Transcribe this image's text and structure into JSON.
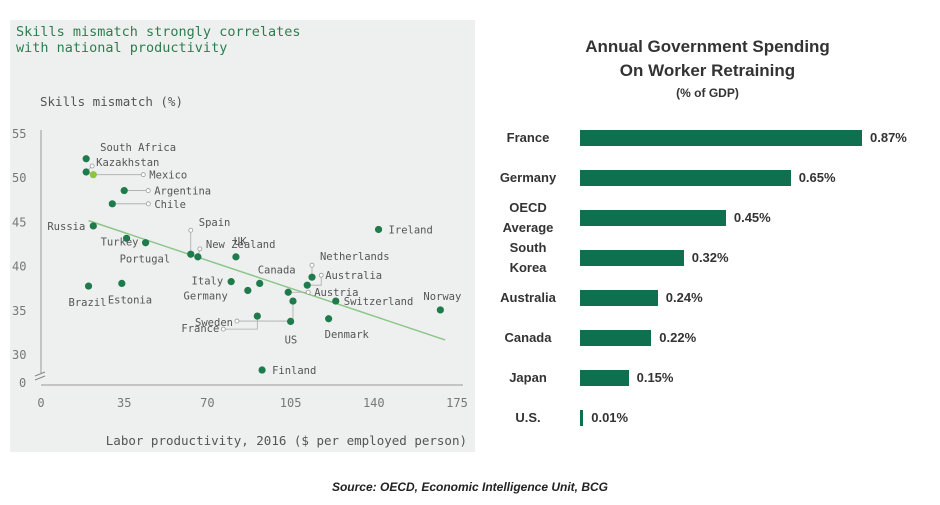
{
  "left_chart_data": {
    "type": "scatter",
    "title": "Skills mismatch strongly correlates\nwith national productivity",
    "ylabel": "Skills mismatch (%)",
    "xlabel": "Labor productivity, 2016 ($ per employed person)",
    "xlim": [
      0,
      175
    ],
    "ylim": [
      30,
      55
    ],
    "x_ticks": [
      "0",
      "35",
      "70",
      "105",
      "140",
      "175"
    ],
    "y_ticks": [
      "55",
      "50",
      "45",
      "40",
      "35",
      "30"
    ],
    "y_break_label": "0",
    "trend_line": {
      "x": [
        20,
        170
      ],
      "y": [
        45.2,
        31.7
      ]
    },
    "point_color": "#1f7a4c",
    "highlight_color": "#8cc63f",
    "points": [
      {
        "label": "South Africa",
        "x": 19,
        "y": 52.2
      },
      {
        "label": "Kazakhstan",
        "x": 19,
        "y": 50.7
      },
      {
        "label": "Mexico",
        "x": 22,
        "y": 50.4
      },
      {
        "label": "Argentina",
        "x": 35,
        "y": 48.6
      },
      {
        "label": "Chile",
        "x": 30,
        "y": 47.1
      },
      {
        "label": "Russia",
        "x": 22,
        "y": 44.6
      },
      {
        "label": "Turkey",
        "x": 36,
        "y": 43.2
      },
      {
        "label": "Portugal",
        "x": 44,
        "y": 42.7
      },
      {
        "label": "Spain",
        "x": 63,
        "y": 41.4
      },
      {
        "label": "New Zealand",
        "x": 66,
        "y": 41.1
      },
      {
        "label": "UK",
        "x": 82,
        "y": 41.1
      },
      {
        "label": "Ireland",
        "x": 142,
        "y": 44.2
      },
      {
        "label": "Netherlands",
        "x": 114,
        "y": 38.8
      },
      {
        "label": "Australia",
        "x": 112,
        "y": 37.9
      },
      {
        "label": "Canada",
        "x": 92,
        "y": 38.1
      },
      {
        "label": "Italy",
        "x": 80,
        "y": 38.3
      },
      {
        "label": "Germany",
        "x": 87,
        "y": 37.3
      },
      {
        "label": "Austria",
        "x": 104,
        "y": 37.1
      },
      {
        "label": "Sweden",
        "x": 106,
        "y": 36.1
      },
      {
        "label": "Switzerland",
        "x": 124,
        "y": 36.1
      },
      {
        "label": "France",
        "x": 91,
        "y": 34.4
      },
      {
        "label": "US",
        "x": 105,
        "y": 33.8
      },
      {
        "label": "Denmark",
        "x": 121,
        "y": 34.1
      },
      {
        "label": "Norway",
        "x": 168,
        "y": 35.1
      },
      {
        "label": "Brazil",
        "x": 20,
        "y": 37.8
      },
      {
        "label": "Estonia",
        "x": 34,
        "y": 38.1
      },
      {
        "label": "Finland",
        "x": 93,
        "y": 28.3
      }
    ]
  },
  "chart_data": {
    "type": "bar",
    "title": "Annual Government Spending\nOn Worker Retraining",
    "subtitle": "(% of GDP)",
    "orientation": "horizontal",
    "bar_color": "#0f7050",
    "categories": [
      "France",
      "Germany",
      "OECD Average",
      "South Korea",
      "Australia",
      "Canada",
      "Japan",
      "U.S."
    ],
    "category_display": [
      "France",
      "Germany",
      "OECD\nAverage",
      "South\nKorea",
      "Australia",
      "Canada",
      "Japan",
      "U.S."
    ],
    "values": [
      0.87,
      0.65,
      0.45,
      0.32,
      0.24,
      0.22,
      0.15,
      0.01
    ],
    "value_labels": [
      "0.87%",
      "0.65%",
      "0.45%",
      "0.32%",
      "0.24%",
      "0.22%",
      "0.15%",
      "0.01%"
    ],
    "xlim": [
      0,
      0.87
    ]
  },
  "source": "Source: OECD, Economic Intelligence Unit, BCG"
}
